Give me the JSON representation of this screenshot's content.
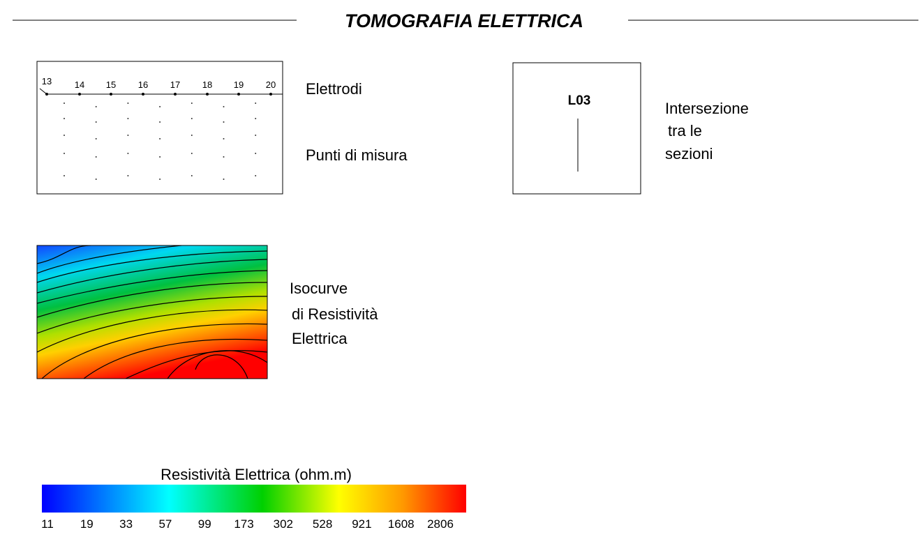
{
  "header": {
    "title": "TOMOGRAFIA ELETTRICA"
  },
  "electrodes_panel": {
    "labels": [
      13,
      14,
      15,
      16,
      17,
      18,
      19,
      20
    ],
    "electrodes_text": "Elettrodi",
    "points_text": "Punti di misura"
  },
  "intersection_panel": {
    "section": "L03",
    "text": [
      "Intersezione",
      "tra le",
      "sezioni"
    ]
  },
  "contour_panel": {
    "text": [
      "Isocurve",
      "di Resistività",
      "Elettrica"
    ]
  },
  "colorbar": {
    "title": "Resistività Elettrica (ohm.m)",
    "labels": [
      11,
      19,
      33,
      57,
      99,
      173,
      302,
      528,
      921,
      1608,
      2806
    ]
  }
}
